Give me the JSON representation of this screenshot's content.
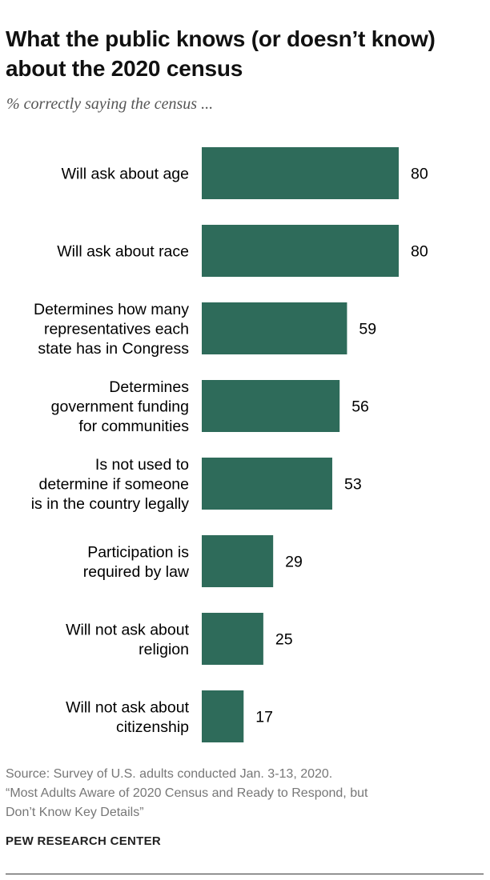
{
  "title": "What the public knows (or doesn’t know) about the 2020 census",
  "subtitle": "% correctly saying the census ...",
  "colors": {
    "bar": "#2e6b5a"
  },
  "chart_data": {
    "type": "bar",
    "orientation": "horizontal",
    "categories": [
      [
        "Will ask about age"
      ],
      [
        "Will ask about race"
      ],
      [
        "Determines how many",
        "representatives each",
        "state has in Congress"
      ],
      [
        "Determines",
        "government funding",
        "for communities"
      ],
      [
        "Is not used to",
        "determine if someone",
        "is in the country legally"
      ],
      [
        "Participation is",
        "required by law"
      ],
      [
        "Will not ask about",
        "religion"
      ],
      [
        "Will not ask about",
        "citizenship"
      ]
    ],
    "values": [
      80,
      80,
      59,
      56,
      53,
      29,
      25,
      17
    ],
    "xlim": [
      0,
      80
    ],
    "grid": false,
    "legend": "none"
  },
  "source": {
    "line1": "Source: Survey of U.S. adults conducted Jan. 3-13, 2020.",
    "line2": "“Most Adults Aware of 2020 Census and Ready to Respond, but",
    "line3": "Don’t Know Key Details”"
  },
  "brand": "PEW RESEARCH CENTER"
}
